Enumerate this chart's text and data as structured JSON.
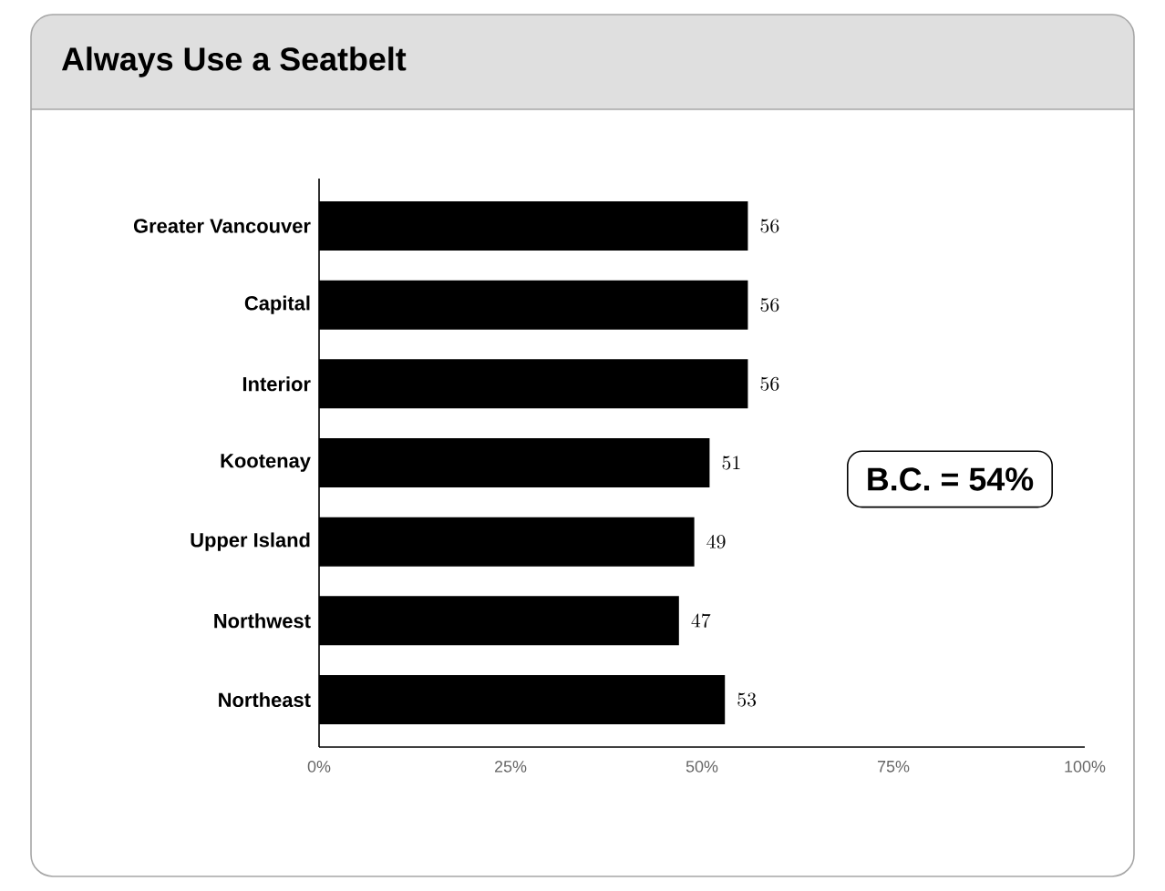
{
  "chart_data": {
    "type": "bar",
    "orientation": "horizontal",
    "title": "Always Use a Seatbelt",
    "categories": [
      "Greater Vancouver",
      "Capital",
      "Interior",
      "Kootenay",
      "Upper Island",
      "Northwest",
      "Northeast"
    ],
    "values": [
      56,
      56,
      56,
      51,
      49,
      47,
      53
    ],
    "color": "#000000",
    "data_labels": true,
    "xlim": [
      0,
      100
    ],
    "xticks": [
      {
        "value": 0,
        "label": "0%"
      },
      {
        "value": 25,
        "label": "25%"
      },
      {
        "value": 50,
        "label": "50%"
      },
      {
        "value": 75,
        "label": "75%"
      },
      {
        "value": 100,
        "label": "100%"
      }
    ],
    "annotations": [
      "B.C. = 54%"
    ]
  }
}
